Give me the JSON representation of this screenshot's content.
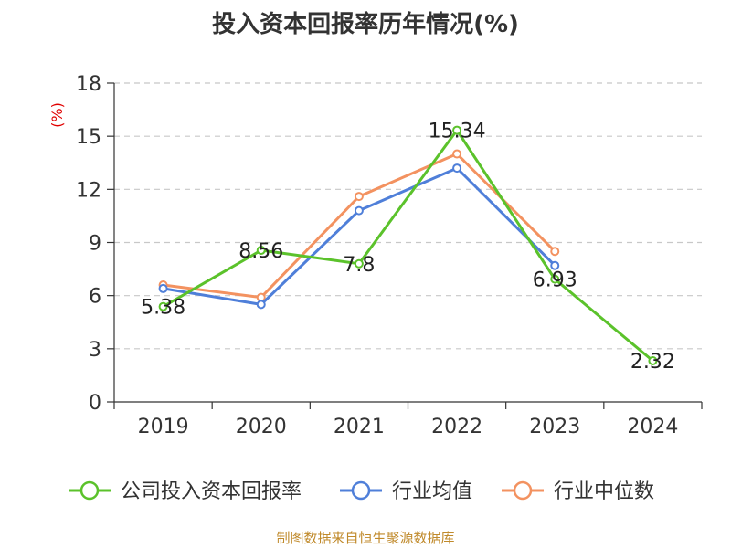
{
  "chart_data": {
    "type": "line",
    "title": "投入资本回报率历年情况(%)",
    "ylabel": "(%)",
    "xlabel": "",
    "categories": [
      "2019",
      "2020",
      "2021",
      "2022",
      "2023",
      "2024"
    ],
    "ylim": [
      0,
      18
    ],
    "yticks": [
      0,
      3,
      6,
      9,
      12,
      15,
      18
    ],
    "grid": true,
    "legend_position": "bottom",
    "series": [
      {
        "name": "公司投入资本回报率",
        "color": "#5bc22b",
        "values": [
          5.38,
          8.56,
          7.8,
          15.34,
          6.93,
          2.32
        ],
        "show_labels": true,
        "labels": [
          "5.38",
          "8.56",
          "7.8",
          "15.34",
          "6.93",
          "2.32"
        ]
      },
      {
        "name": "行业均值",
        "color": "#4f7fd9",
        "values": [
          6.4,
          5.5,
          10.8,
          13.2,
          7.7,
          null
        ],
        "show_labels": false
      },
      {
        "name": "行业中位数",
        "color": "#f39260",
        "values": [
          6.6,
          5.9,
          11.6,
          14.0,
          8.5,
          null
        ],
        "show_labels": false
      }
    ],
    "source": "制图数据来自恒生聚源数据库"
  }
}
